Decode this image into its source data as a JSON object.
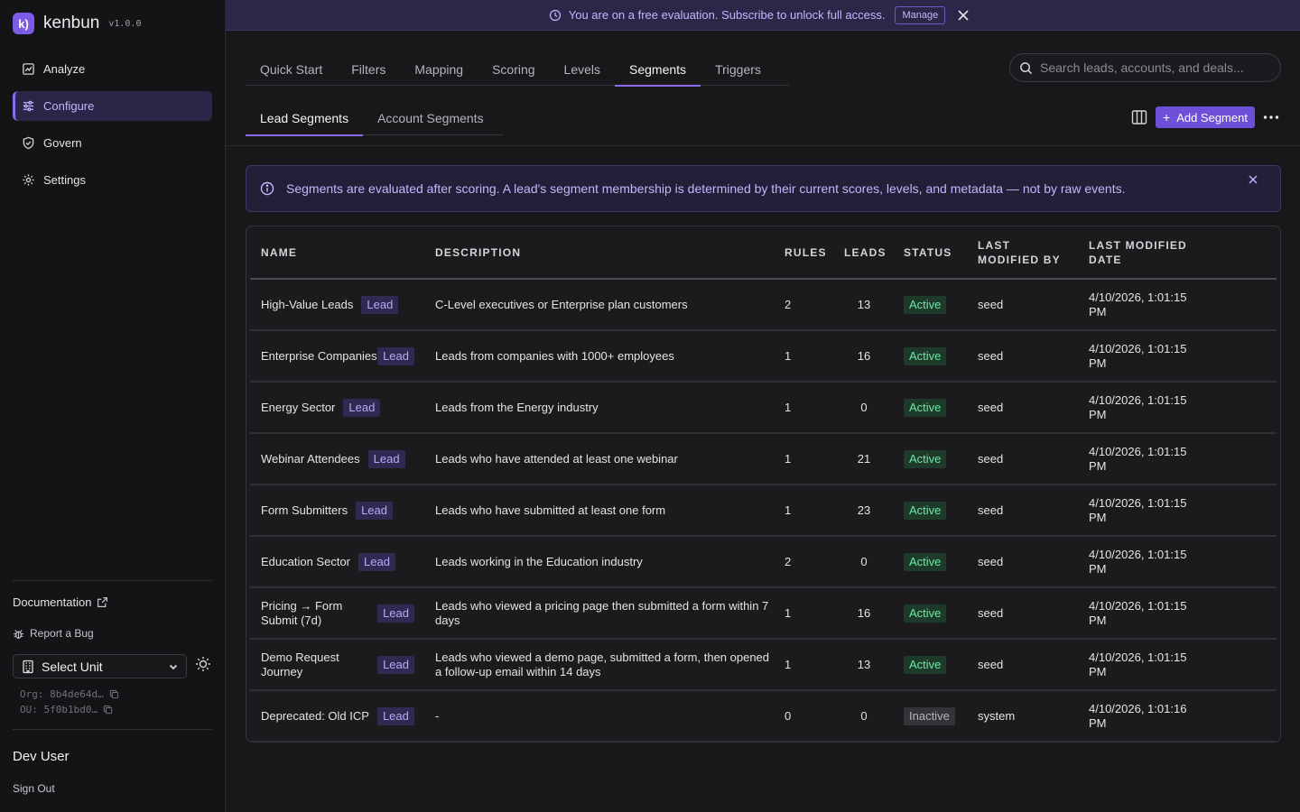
{
  "brand": {
    "name": "kenbun",
    "version": "v1.0.0",
    "logo_glyph": "k)"
  },
  "banner": {
    "message": "You are on a free evaluation. Subscribe to unlock full access.",
    "manage_label": "Manage"
  },
  "nav": {
    "items": [
      {
        "label": "Analyze",
        "icon": "chart-icon",
        "active": false
      },
      {
        "label": "Configure",
        "icon": "sliders-icon",
        "active": true
      },
      {
        "label": "Govern",
        "icon": "shield-icon",
        "active": false
      },
      {
        "label": "Settings",
        "icon": "gear-icon",
        "active": false
      }
    ]
  },
  "sidebar_footer": {
    "documentation": "Documentation",
    "report_bug": "Report a Bug",
    "unit_select": "Select Unit",
    "org": "Org: 8b4de64d…",
    "ou": "OU: 5f0b1bd0…",
    "user": "Dev User",
    "sign_out": "Sign Out"
  },
  "tabs": [
    "Quick Start",
    "Filters",
    "Mapping",
    "Scoring",
    "Levels",
    "Segments",
    "Triggers"
  ],
  "active_tab": "Segments",
  "subtabs": [
    "Lead Segments",
    "Account Segments"
  ],
  "active_subtab": "Lead Segments",
  "search": {
    "placeholder": "Search leads, accounts, and deals..."
  },
  "toolbar": {
    "add_label": "Add Segment"
  },
  "info": {
    "message": "Segments are evaluated after scoring. A lead's segment membership is determined by their current scores, levels, and metadata — not by raw events."
  },
  "table": {
    "headers": {
      "name": "NAME",
      "description": "DESCRIPTION",
      "rules": "RULES",
      "leads": "LEADS",
      "status": "STATUS",
      "modified_by_1": "LAST",
      "modified_by_2": "MODIFIED BY",
      "modified_date_1": "LAST MODIFIED",
      "modified_date_2": "DATE"
    },
    "rows": [
      {
        "name": "High-Value Leads",
        "badge": "Lead",
        "description": "C-Level executives or Enterprise plan customers",
        "rules": "2",
        "leads": "13",
        "status": "Active",
        "modified_by": "seed",
        "date_1": "4/10/2026, 1:01:15",
        "date_2": "PM",
        "inline": true
      },
      {
        "name": "Enterprise Companies",
        "badge": "Lead",
        "description": "Leads from companies with 1000+ employees",
        "rules": "1",
        "leads": "16",
        "status": "Active",
        "modified_by": "seed",
        "date_1": "4/10/2026, 1:01:15",
        "date_2": "PM",
        "inline": false
      },
      {
        "name": "Energy Sector",
        "badge": "Lead",
        "description": "Leads from the Energy industry",
        "rules": "1",
        "leads": "0",
        "status": "Active",
        "modified_by": "seed",
        "date_1": "4/10/2026, 1:01:15",
        "date_2": "PM",
        "inline": true
      },
      {
        "name": "Webinar Attendees",
        "badge": "Lead",
        "description": "Leads who have attended at least one webinar",
        "rules": "1",
        "leads": "21",
        "status": "Active",
        "modified_by": "seed",
        "date_1": "4/10/2026, 1:01:15",
        "date_2": "PM",
        "inline": true
      },
      {
        "name": "Form Submitters",
        "badge": "Lead",
        "description": "Leads who have submitted at least one form",
        "rules": "1",
        "leads": "23",
        "status": "Active",
        "modified_by": "seed",
        "date_1": "4/10/2026, 1:01:15",
        "date_2": "PM",
        "inline": true
      },
      {
        "name": "Education Sector",
        "badge": "Lead",
        "description": "Leads working in the Education industry",
        "rules": "2",
        "leads": "0",
        "status": "Active",
        "modified_by": "seed",
        "date_1": "4/10/2026, 1:01:15",
        "date_2": "PM",
        "inline": true
      },
      {
        "name": "Pricing → Form Submit (7d)",
        "badge": "Lead",
        "description": "Leads who viewed a pricing page then submitted a form within 7 days",
        "rules": "1",
        "leads": "16",
        "status": "Active",
        "modified_by": "seed",
        "date_1": "4/10/2026, 1:01:15",
        "date_2": "PM",
        "inline": false
      },
      {
        "name": "Demo Request Journey",
        "badge": "Lead",
        "description": "Leads who viewed a demo page, submitted a form, then opened a follow-up email within 14 days",
        "rules": "1",
        "leads": "13",
        "status": "Active",
        "modified_by": "seed",
        "date_1": "4/10/2026, 1:01:15",
        "date_2": "PM",
        "inline": false
      },
      {
        "name": "Deprecated: Old ICP",
        "badge": "Lead",
        "description": "-",
        "rules": "0",
        "leads": "0",
        "status": "Inactive",
        "modified_by": "system",
        "date_1": "4/10/2026, 1:01:16",
        "date_2": "PM",
        "inline": true
      }
    ]
  },
  "colors": {
    "accent": "#8b6cf0",
    "active_status": "#6ee7a4",
    "background": "#18181b"
  }
}
